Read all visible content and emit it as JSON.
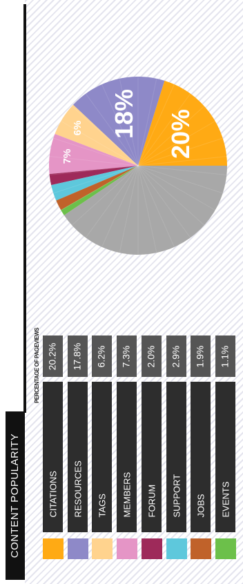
{
  "title": "CONTENT POPULARITY",
  "legend_header": "PERCENTAGE OF PAGEVIEWS",
  "chart_data": {
    "type": "pie",
    "title": "CONTENT POPULARITY",
    "slices": [
      {
        "name": "CITATIONS",
        "value": 20.2,
        "label": "20.2%",
        "pie_label": "20%",
        "color": "#ffaa14"
      },
      {
        "name": "RESOURCES",
        "value": 17.8,
        "label": "17.8%",
        "pie_label": "18%",
        "color": "#8e89c8"
      },
      {
        "name": "TAGS",
        "value": 6.2,
        "label": "6.2%",
        "pie_label": "6%",
        "color": "#ffd38e"
      },
      {
        "name": "MEMBERS",
        "value": 7.3,
        "label": "7.3%",
        "pie_label": "7%",
        "color": "#e595c6"
      },
      {
        "name": "FORUM",
        "value": 2.0,
        "label": "2.0%",
        "pie_label": "",
        "color": "#9e2a5a"
      },
      {
        "name": "SUPPORT",
        "value": 2.9,
        "label": "2.9%",
        "pie_label": "",
        "color": "#5ec8dc"
      },
      {
        "name": "JOBS",
        "value": 1.9,
        "label": "1.9%",
        "pie_label": "",
        "color": "#c0622a"
      },
      {
        "name": "EVENTS",
        "value": 1.1,
        "label": "1.1%",
        "pie_label": "",
        "color": "#6cc04a"
      }
    ],
    "remainder_color": "#a8a8a8",
    "legend": "bottom"
  }
}
